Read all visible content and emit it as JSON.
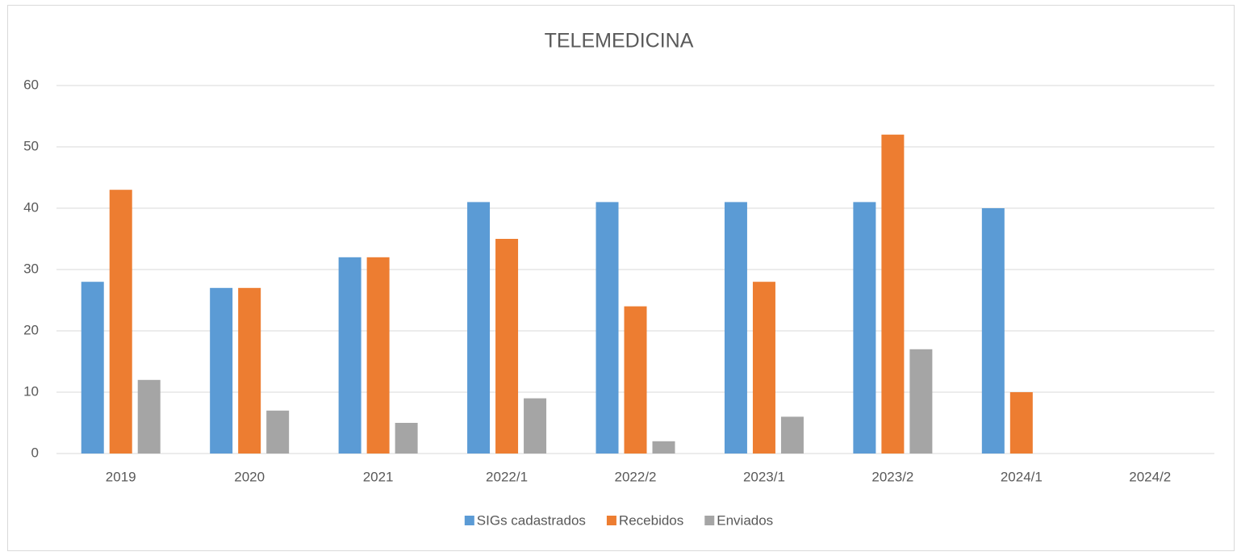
{
  "chart_data": {
    "type": "bar",
    "title": "TELEMEDICINA",
    "categories": [
      "2019",
      "2020",
      "2021",
      "2022/1",
      "2022/2",
      "2023/1",
      "2023/2",
      "2024/1",
      "2024/2"
    ],
    "series": [
      {
        "name": "SIGs cadastrados",
        "color": "#5b9bd5",
        "values": [
          28,
          27,
          32,
          41,
          41,
          41,
          41,
          40,
          null
        ]
      },
      {
        "name": "Recebidos",
        "color": "#ed7d31",
        "values": [
          43,
          27,
          32,
          35,
          24,
          28,
          52,
          10,
          null
        ]
      },
      {
        "name": "Enviados",
        "color": "#a5a5a5",
        "values": [
          12,
          7,
          5,
          9,
          2,
          6,
          17,
          null,
          null
        ]
      }
    ],
    "ylim": [
      0,
      60
    ],
    "yticks": [
      0,
      10,
      20,
      30,
      40,
      50,
      60
    ],
    "grid": true,
    "legend": "bottom"
  }
}
